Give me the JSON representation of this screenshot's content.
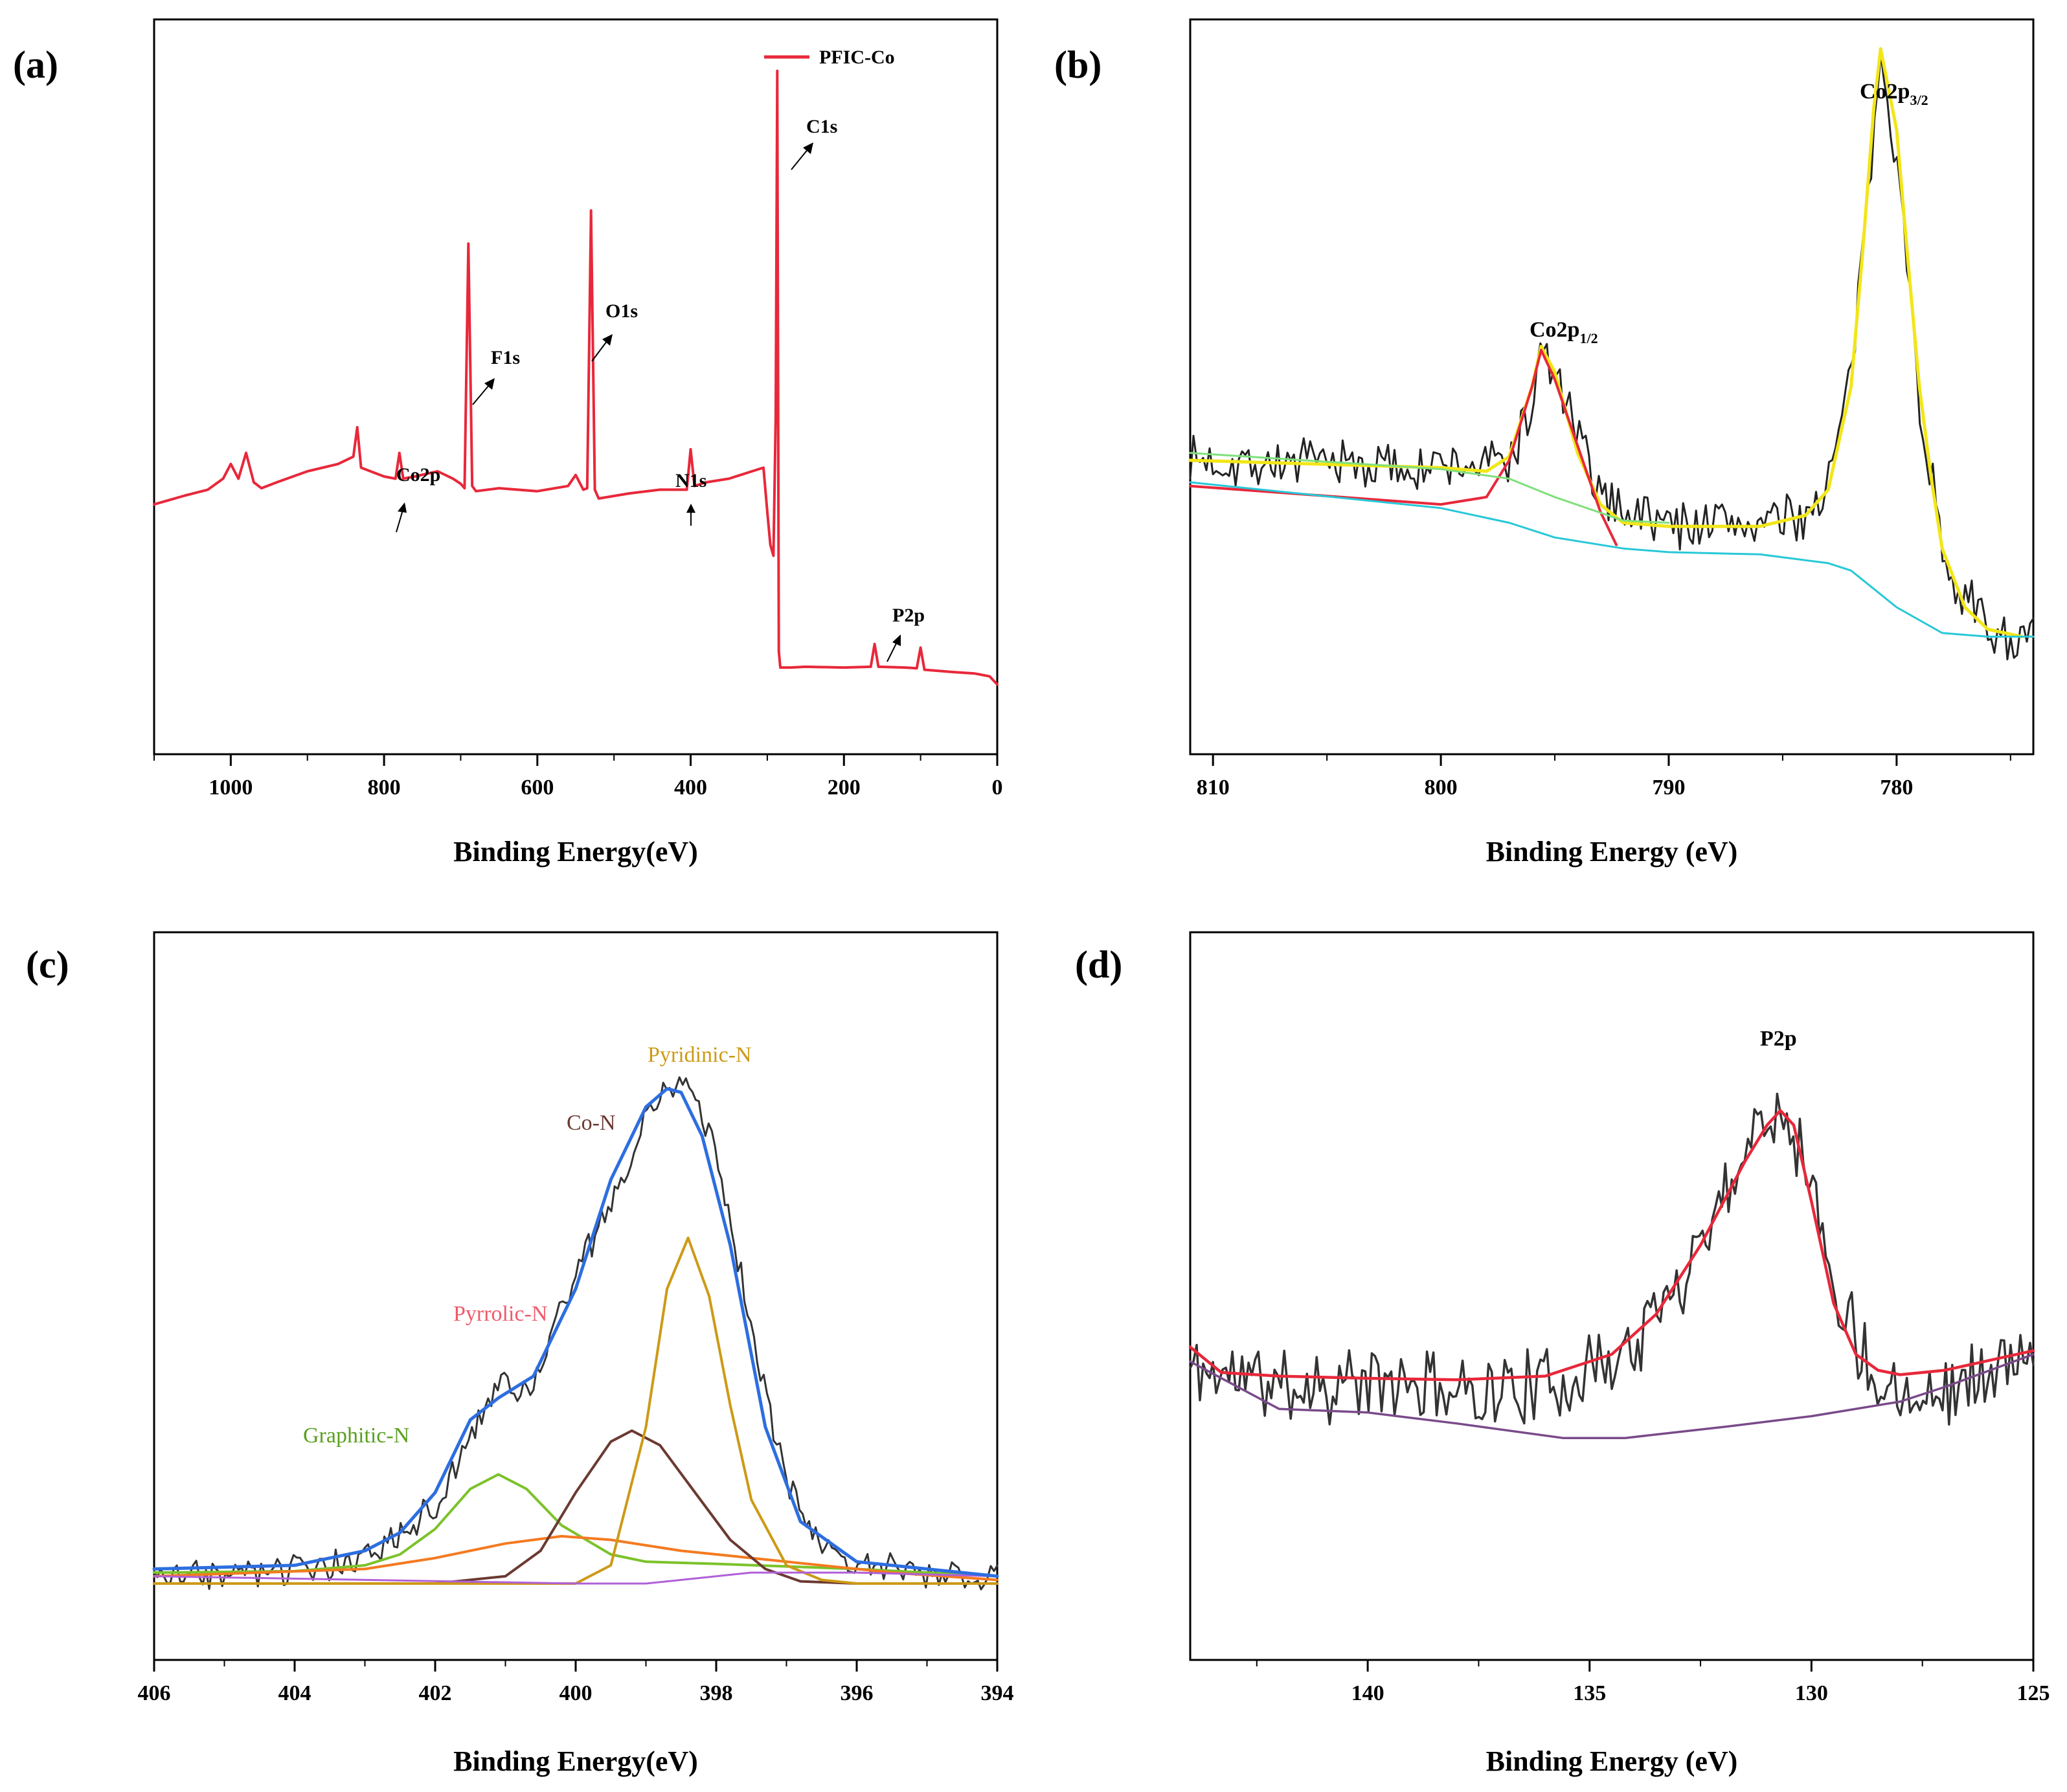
{
  "chart_data": [
    {
      "panel_label": "(a)",
      "type": "line",
      "xlabel": "Binding Energy(eV)",
      "ylabel": "",
      "xlim": [
        1100,
        0
      ],
      "ylim": [
        0,
        100
      ],
      "x_ticks": [
        1000,
        800,
        600,
        400,
        200,
        0
      ],
      "x_tick_labels": [
        "1000",
        "800",
        "600",
        "400",
        "200",
        "0"
      ],
      "legend": {
        "placement": "top-right",
        "entries": [
          "PFIC-Co"
        ]
      },
      "series": [
        {
          "name": "PFIC-Co",
          "color": "#e8283a",
          "x": [
            1100,
            1060,
            1030,
            1010,
            1000,
            990,
            980,
            970,
            960,
            940,
            900,
            860,
            840,
            835,
            830,
            800,
            785,
            780,
            775,
            760,
            730,
            710,
            700,
            695,
            690,
            685,
            680,
            650,
            600,
            560,
            550,
            540,
            535,
            530,
            525,
            520,
            480,
            440,
            405,
            400,
            395,
            380,
            350,
            320,
            305,
            300,
            296,
            292,
            289,
            287,
            285,
            283,
            280,
            270,
            250,
            200,
            165,
            160,
            155,
            120,
            105,
            100,
            95,
            60,
            30,
            10,
            0
          ],
          "y": [
            34.0,
            35.2,
            36.0,
            37.5,
            39.5,
            37.5,
            41.0,
            37.0,
            36.2,
            37.0,
            38.5,
            39.5,
            40.5,
            44.5,
            39.0,
            37.8,
            37.5,
            41.0,
            37.5,
            37.8,
            38.5,
            37.5,
            36.8,
            36.2,
            69.5,
            36.5,
            35.8,
            36.2,
            35.8,
            36.5,
            38.0,
            36.0,
            36.2,
            74.0,
            36.0,
            34.8,
            35.5,
            36.0,
            36.0,
            41.5,
            36.5,
            37.0,
            37.5,
            38.5,
            39.0,
            33.0,
            28.5,
            27.0,
            46.0,
            93.0,
            14.0,
            11.8,
            11.8,
            11.8,
            11.9,
            11.8,
            11.9,
            15.0,
            11.9,
            11.8,
            11.7,
            14.5,
            11.5,
            11.2,
            11.0,
            10.6,
            9.5
          ]
        }
      ],
      "annotations": [
        "C1s",
        "O1s",
        "F1s",
        "Co2p",
        "N1s",
        "P2p"
      ]
    },
    {
      "panel_label": "(b)",
      "type": "line",
      "xlabel": "Binding Energy (eV)",
      "ylabel": "",
      "xlim": [
        811,
        774
      ],
      "ylim": [
        0,
        100
      ],
      "x_ticks": [
        810,
        800,
        790,
        780
      ],
      "x_tick_labels": [
        "810",
        "800",
        "790",
        "780"
      ],
      "series": [
        {
          "name": "raw data",
          "color": "#222222",
          "seed": 7,
          "noise": 4.0,
          "x": [
            811,
            800,
            797,
            796,
            795.6,
            795,
            794,
            793,
            790,
            786,
            784,
            783,
            782,
            781,
            780.7,
            780,
            779.5,
            779,
            778,
            777,
            776,
            775,
            774
          ],
          "y": [
            40.0,
            39.0,
            40.0,
            47.0,
            55.0,
            52.0,
            43.0,
            35.0,
            31.5,
            31.5,
            32.5,
            37.0,
            51.0,
            84.0,
            97.0,
            82.0,
            65.0,
            48.0,
            28.0,
            21.0,
            17.0,
            16.0,
            15.0
          ]
        },
        {
          "name": "fit envelope",
          "color": "#f2e618",
          "x": [
            811,
            800,
            798,
            797,
            796,
            795.6,
            795,
            794,
            793,
            792,
            790,
            786,
            784,
            783,
            782,
            781.5,
            781,
            780.7,
            780,
            779.5,
            779,
            778.5,
            778,
            777,
            776,
            774.5
          ],
          "y": [
            40.0,
            39.0,
            38.5,
            40.5,
            50.0,
            55.5,
            52.0,
            41.0,
            34.0,
            31.5,
            31.0,
            31.0,
            32.5,
            36.0,
            50.0,
            68.0,
            88.0,
            96.0,
            85.0,
            67.0,
            50.0,
            38.0,
            28.0,
            20.0,
            17.0,
            16.0
          ]
        },
        {
          "name": "Co2p1/2 fit",
          "color": "#e8283a",
          "x": [
            811,
            800,
            798,
            797,
            796,
            795.6,
            795,
            794,
            793,
            792.3
          ],
          "y": [
            36.5,
            34.0,
            35.0,
            40.0,
            50.0,
            55.0,
            51.0,
            42.0,
            33.0,
            28.5
          ]
        },
        {
          "name": "background 1",
          "color": "#7ee07a",
          "x": [
            811,
            800,
            797,
            795,
            792,
            790
          ],
          "y": [
            41.0,
            38.8,
            37.5,
            35.0,
            31.8,
            31.5
          ]
        },
        {
          "name": "background 2",
          "color": "#26c8d8",
          "x": [
            811,
            800,
            797,
            795,
            792,
            790,
            786,
            783,
            782,
            780,
            778,
            776,
            774
          ],
          "y": [
            37.0,
            33.5,
            31.5,
            29.5,
            28.0,
            27.5,
            27.2,
            26.0,
            25.0,
            20.0,
            16.5,
            16.0,
            16.0
          ]
        }
      ],
      "annotations": [
        "Co2p1/2",
        "Co2p3/2"
      ]
    },
    {
      "panel_label": "(c)",
      "type": "line",
      "xlabel": "Binding Energy(eV)",
      "ylabel": "",
      "xlim": [
        406,
        394
      ],
      "ylim": [
        0,
        100
      ],
      "x_ticks": [
        406,
        404,
        402,
        400,
        398,
        396,
        394
      ],
      "x_tick_labels": [
        "406",
        "404",
        "402",
        "400",
        "398",
        "396",
        "394"
      ],
      "series": [
        {
          "name": "raw data",
          "color": "#333333",
          "seed": 3,
          "noise": 2.5,
          "x": [
            406,
            404,
            403,
            402,
            401.5,
            401.1,
            400.7,
            400.2,
            399.5,
            399,
            398.7,
            398.4,
            398.0,
            397.5,
            397.0,
            396.5,
            396.0,
            395,
            394
          ],
          "y": [
            11.5,
            12.0,
            14.0,
            21.0,
            30.0,
            38.5,
            36.0,
            48.0,
            63.0,
            74.0,
            79.0,
            79.0,
            70.0,
            46.0,
            24.0,
            16.0,
            13.5,
            12.0,
            11.0
          ]
        },
        {
          "name": "Graphitic-N",
          "color": "#7cc22a",
          "x": [
            406,
            404,
            403,
            402.5,
            402,
            401.5,
            401.1,
            400.7,
            400.2,
            399.5,
            399,
            398,
            396,
            394
          ],
          "y": [
            12.0,
            12.2,
            13.0,
            14.5,
            18.0,
            23.5,
            25.5,
            23.5,
            18.5,
            14.5,
            13.5,
            13.2,
            12.5,
            11.5
          ]
        },
        {
          "name": "Pyrrolic-N",
          "color": "#f47a20",
          "x": [
            406,
            403,
            402,
            401,
            400.2,
            399.5,
            398.5,
            397.5,
            396.5,
            395.5,
            394
          ],
          "y": [
            11.5,
            12.5,
            14.0,
            16.0,
            17.0,
            16.5,
            15.0,
            14.0,
            13.0,
            12.0,
            11.0
          ]
        },
        {
          "name": "Co-N",
          "color": "#6b3a32",
          "x": [
            406,
            402,
            401,
            400.5,
            400,
            399.5,
            399.2,
            398.8,
            398.3,
            397.8,
            397.3,
            396.8,
            396,
            394
          ],
          "y": [
            10.5,
            10.5,
            11.5,
            15.0,
            23.0,
            30.0,
            31.5,
            29.5,
            23.0,
            16.5,
            12.5,
            10.8,
            10.5,
            10.5
          ]
        },
        {
          "name": "Pyridinic-N",
          "color": "#cc9a16",
          "x": [
            406,
            400,
            399.5,
            399.0,
            398.7,
            398.4,
            398.1,
            397.8,
            397.5,
            397.0,
            396.5,
            396,
            394
          ],
          "y": [
            10.5,
            10.5,
            13.0,
            32.0,
            51.0,
            58.0,
            50.0,
            35.0,
            22.0,
            13.0,
            11.0,
            10.5,
            10.5
          ]
        },
        {
          "name": "background",
          "color": "#b060d8",
          "x": [
            406,
            400,
            399,
            398,
            397.5,
            396,
            394
          ],
          "y": [
            11.5,
            10.5,
            10.5,
            11.5,
            12.0,
            12.0,
            11.5
          ]
        },
        {
          "name": "fit envelope",
          "color": "#2d6ee0",
          "x": [
            406,
            404,
            403,
            402.5,
            402,
            401.5,
            401.1,
            400.6,
            400.0,
            399.5,
            399.0,
            398.7,
            398.5,
            398.2,
            397.8,
            397.3,
            396.8,
            396.0,
            395,
            394
          ],
          "y": [
            12.5,
            13.0,
            15.0,
            17.5,
            23.0,
            33.0,
            36.0,
            39.0,
            51.0,
            66.0,
            76.0,
            78.5,
            78.0,
            72.0,
            57.0,
            32.0,
            19.0,
            13.5,
            12.5,
            11.5
          ]
        }
      ],
      "annotations": [
        "Pyridinic-N",
        "Co-N",
        "Pyrrolic-N",
        "Graphitic-N"
      ]
    },
    {
      "panel_label": "(d)",
      "type": "line",
      "xlabel": "Binding Energy (eV)",
      "ylabel": "",
      "xlim": [
        144,
        125
      ],
      "ylim": [
        0,
        100
      ],
      "x_ticks": [
        140,
        135,
        130,
        125
      ],
      "x_tick_labels": [
        "140",
        "135",
        "130",
        "125"
      ],
      "series": [
        {
          "name": "raw data",
          "color": "#333333",
          "seed": 11,
          "noise": 6.0,
          "x": [
            144,
            142,
            140,
            138,
            136,
            134,
            133,
            132,
            131,
            130.6,
            130.2,
            129.5,
            128.5,
            127,
            125
          ],
          "y": [
            40.0,
            38.0,
            38.0,
            37.0,
            37.5,
            43.0,
            52.0,
            64.0,
            76.0,
            76.0,
            70.0,
            52.0,
            38.0,
            37.0,
            42.0
          ]
        },
        {
          "name": "P2p fit",
          "color": "#e8283a",
          "x": [
            144,
            143.3,
            142,
            140,
            138,
            136,
            134.5,
            133.5,
            132.5,
            131.5,
            131.0,
            130.7,
            130.4,
            130.0,
            129.5,
            129.0,
            128.5,
            128.0,
            127,
            125
          ],
          "y": [
            43.0,
            39.5,
            39.0,
            38.7,
            38.5,
            39.0,
            42.0,
            47.5,
            57.0,
            68.5,
            73.5,
            75.5,
            73.5,
            63.0,
            49.0,
            42.0,
            39.8,
            39.2,
            39.8,
            42.5
          ]
        },
        {
          "name": "background",
          "color": "#7a4a8a",
          "x": [
            144,
            142,
            140,
            138,
            135.6,
            134.2,
            132,
            130,
            128,
            127,
            125
          ],
          "y": [
            41.0,
            34.5,
            34.0,
            32.5,
            30.5,
            30.5,
            32.0,
            33.5,
            35.5,
            37.5,
            42.0
          ]
        }
      ],
      "annotations": [
        "P2p"
      ]
    }
  ],
  "labels": {
    "a": {
      "panel": "(a)",
      "xlabel": "Binding Energy(eV)",
      "legend": "PFIC-Co",
      "c1s": "C1s",
      "o1s": "O1s",
      "f1s": "F1s",
      "co2p": "Co2p",
      "n1s": "N1s",
      "p2p": "P2p"
    },
    "b": {
      "panel": "(b)",
      "xlabel": "Binding Energy (eV)",
      "co2p12_main": "Co2p",
      "co2p12_sub": "1/2",
      "co2p32_main": "Co2p",
      "co2p32_sub": "3/2"
    },
    "c": {
      "panel": "(c)",
      "xlabel": "Binding Energy(eV)",
      "pyridinic": "Pyridinic-N",
      "con": "Co-N",
      "pyrrolic": "Pyrrolic-N",
      "graphitic": "Graphitic-N"
    },
    "d": {
      "panel": "(d)",
      "xlabel": "Binding Energy (eV)",
      "p2p": "P2p"
    }
  },
  "colors": {
    "red": "#e8283a",
    "yellow": "#f2e618",
    "lightgreen": "#7ee07a",
    "cyan": "#26c8d8",
    "raw": "#333333",
    "green": "#7cc22a",
    "orange": "#f47a20",
    "brown": "#6b3a32",
    "gold": "#cc9a16",
    "purple": "#b060d8",
    "blue": "#2d6ee0",
    "darkpurple": "#7a4a8a"
  }
}
